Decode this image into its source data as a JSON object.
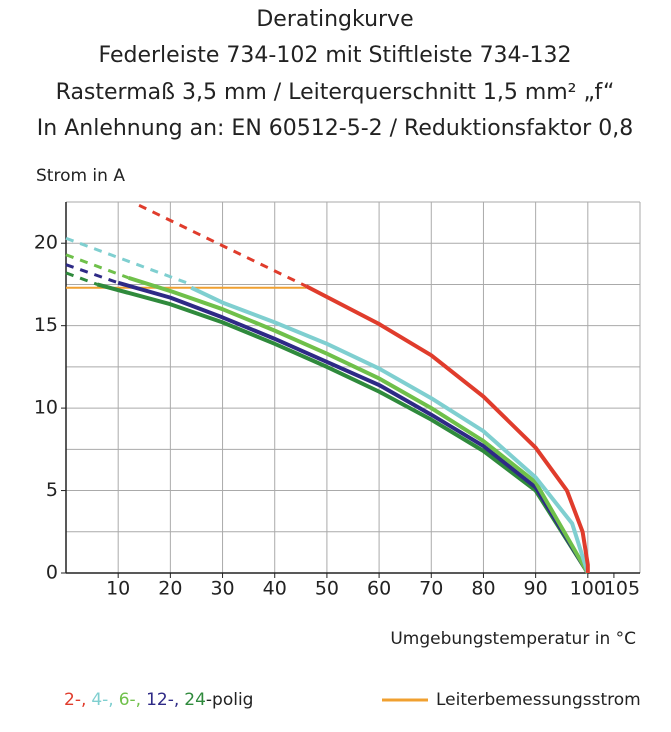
{
  "chart_data": {
    "type": "line",
    "title": "Deratingkurve",
    "subtitle": [
      "Federleiste 734-102 mit Stiftleiste 734-132",
      "Rastermaß 3,5 mm / Leiterquerschnitt 1,5 mm² „f“",
      "In Anlehnung an: EN 60512-5-2 / Reduktionsfaktor 0,8"
    ],
    "y_label": "Strom in A",
    "x_label": "Umgebungstemperatur in °C",
    "xlim": [
      0,
      110
    ],
    "ylim": [
      0,
      22.5
    ],
    "xticks": [
      10,
      20,
      30,
      40,
      50,
      60,
      70,
      80,
      90,
      100,
      105
    ],
    "xgrid": [
      10,
      20,
      30,
      40,
      50,
      60,
      70,
      80,
      90,
      100,
      110
    ],
    "yticks": [
      0,
      5,
      10,
      15,
      20
    ],
    "ygrid": [
      2.5,
      5,
      7.5,
      10,
      12.5,
      15,
      17.5,
      20,
      22.5
    ],
    "grid": true,
    "legend_suffix": "-polig",
    "series": [
      {
        "name": "2-,",
        "color": "#e03c2c",
        "dashed": {
          "x": [
            14,
            46
          ],
          "values": [
            22.3,
            17.4
          ]
        },
        "x": [
          46,
          60,
          70,
          80,
          90,
          96,
          99,
          100,
          100
        ],
        "values": [
          17.4,
          15.1,
          13.2,
          10.7,
          7.6,
          5,
          2.5,
          0.5,
          0
        ]
      },
      {
        "name": "4-,",
        "color": "#7fcfd0",
        "dashed": {
          "x": [
            0,
            24
          ],
          "values": [
            20.3,
            17.5
          ]
        },
        "x": [
          24,
          30,
          40,
          50,
          60,
          70,
          80,
          90,
          97,
          100
        ],
        "values": [
          17.3,
          16.4,
          15.2,
          13.9,
          12.4,
          10.6,
          8.6,
          5.8,
          3,
          0
        ]
      },
      {
        "name": "6-,",
        "color": "#6fc04a",
        "dashed": {
          "x": [
            0,
            12
          ],
          "values": [
            19.3,
            17.9
          ]
        },
        "x": [
          12,
          20,
          30,
          40,
          50,
          60,
          70,
          80,
          90,
          100
        ],
        "values": [
          17.9,
          17.1,
          16,
          14.7,
          13.3,
          11.8,
          10,
          8,
          5.5,
          0
        ]
      },
      {
        "name": "12-,",
        "color": "#2e2a86",
        "dashed": {
          "x": [
            0,
            10
          ],
          "values": [
            18.7,
            17.6
          ]
        },
        "x": [
          10,
          20,
          30,
          40,
          50,
          60,
          70,
          80,
          90,
          100
        ],
        "values": [
          17.6,
          16.7,
          15.5,
          14.2,
          12.8,
          11.4,
          9.6,
          7.7,
          5.2,
          0
        ]
      },
      {
        "name": "24",
        "color": "#2f8a3c",
        "dashed": {
          "x": [
            0,
            6
          ],
          "values": [
            18.2,
            17.5
          ]
        },
        "x": [
          6,
          20,
          30,
          40,
          50,
          60,
          70,
          80,
          90,
          100
        ],
        "values": [
          17.5,
          16.3,
          15.2,
          13.9,
          12.5,
          11,
          9.3,
          7.4,
          5,
          0
        ]
      }
    ],
    "reference_line": {
      "name": "Leiterbemessungsstrom",
      "color": "#f0a030",
      "x": [
        0,
        46
      ],
      "value": 17.3
    }
  }
}
